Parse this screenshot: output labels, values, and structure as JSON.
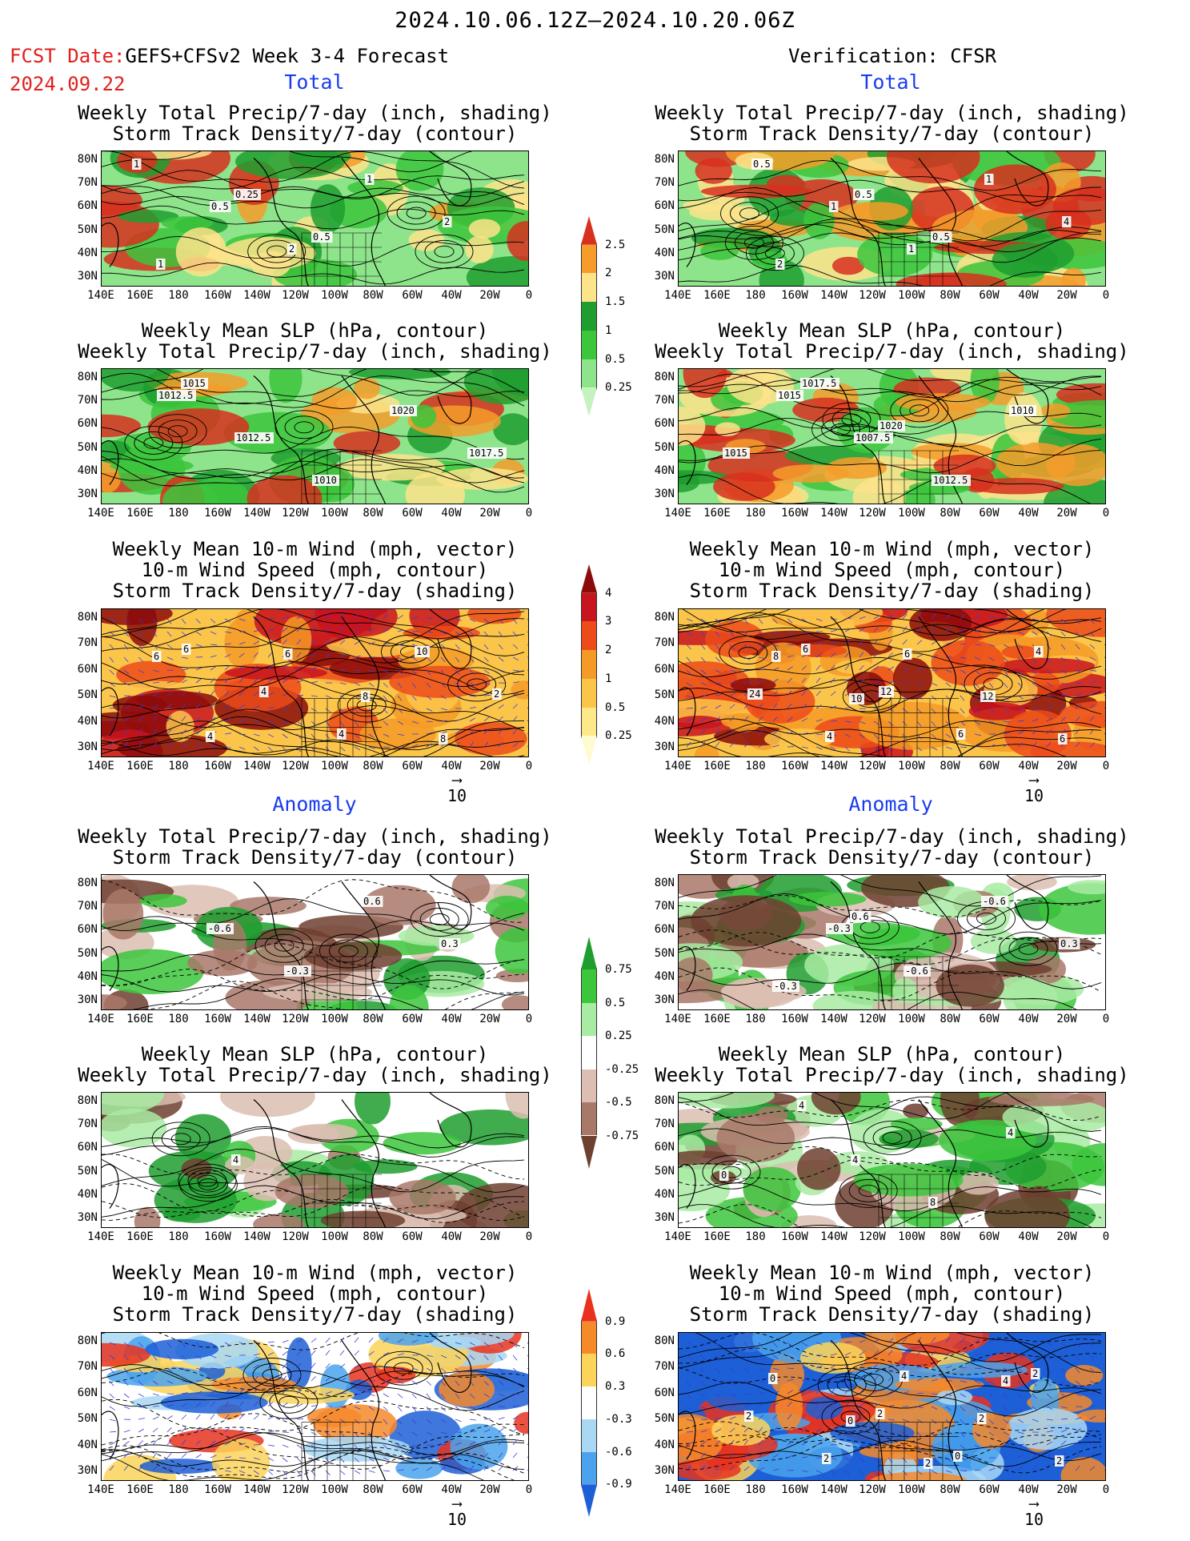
{
  "header": {
    "title": "2024.10.06.12Z–2024.10.20.06Z",
    "fcst_label": "FCST Date:",
    "model_label": "GEFS+CFSv2 Week 3-4 Forecast",
    "fcst_date": "2024.09.22",
    "verification": "Verification: CFSR"
  },
  "sections": {
    "total": "Total",
    "anomaly": "Anomaly"
  },
  "panel_titles": {
    "precip_storm": [
      "Weekly Total Precip/7-day (inch, shading)",
      "Storm Track Density/7-day (contour)"
    ],
    "slp_precip": [
      "Weekly Mean SLP (hPa, contour)",
      "Weekly Total Precip/7-day (inch, shading)"
    ],
    "wind_storm": [
      "Weekly Mean 10-m Wind (mph, vector)",
      "10-m Wind Speed (mph, contour)",
      "Storm Track Density/7-day (shading)"
    ]
  },
  "axes": {
    "lat": [
      "80N",
      "70N",
      "60N",
      "50N",
      "40N",
      "30N"
    ],
    "lon": [
      "140E",
      "160E",
      "180",
      "160W",
      "140W",
      "120W",
      "100W",
      "80W",
      "60W",
      "40W",
      "20W",
      "0"
    ]
  },
  "vector_ref": "10",
  "colorbars": {
    "precip_total": {
      "labels": [
        "2.5",
        "2",
        "1.5",
        "1",
        "0.5",
        "0.25"
      ],
      "colors": [
        "#d7301f",
        "#f59c2a",
        "#fde38a",
        "#1f9e2f",
        "#3cc63c",
        "#8ee48a",
        "#c6f2c0"
      ]
    },
    "storm_total": {
      "labels": [
        "4",
        "3",
        "2",
        "1",
        "0.5",
        "0.25"
      ],
      "colors": [
        "#8b0a0a",
        "#c8141e",
        "#ec4b1a",
        "#f59a26",
        "#fbc54a",
        "#fde88a",
        "#fffbd0"
      ]
    },
    "precip_anom": {
      "labels": [
        "0.75",
        "0.5",
        "0.25",
        "-0.25",
        "-0.5",
        "-0.75"
      ],
      "colors": [
        "#1f9e2f",
        "#3cc63c",
        "#a8eba2",
        "#ffffff",
        "#dcbeb2",
        "#a87868",
        "#6e4030"
      ]
    },
    "storm_anom": {
      "labels": [
        "0.9",
        "0.6",
        "0.3",
        "-0.3",
        "-0.6",
        "-0.9"
      ],
      "colors": [
        "#e8321e",
        "#f68a2a",
        "#fcd45a",
        "#ffffff",
        "#a8d8f4",
        "#4aa3ec",
        "#1d5fd6"
      ]
    }
  },
  "contour_labels": {
    "fc_total_precip": [
      "1",
      "0.5",
      "2",
      "1",
      "2",
      "1",
      "0.25",
      "0.5"
    ],
    "ver_total_precip": [
      "0.5",
      "1",
      "1",
      "1",
      "4",
      "2",
      "0.5",
      "0.5"
    ],
    "fc_total_slp": [
      "1012.5",
      "1012.5",
      "1010",
      "1020",
      "1017.5",
      "1015"
    ],
    "ver_total_slp": [
      "1015",
      "1007.5",
      "1012.5",
      "1010",
      "1015",
      "1017.5",
      "1020"
    ],
    "fc_total_wind": [
      "6",
      "4",
      "4",
      "10",
      "2",
      "4",
      "6",
      "8",
      "8",
      "6"
    ],
    "ver_total_wind": [
      "6",
      "12",
      "6",
      "4",
      "24",
      "4",
      "6",
      "12",
      "6",
      "8",
      "10"
    ],
    "fc_anom_precip": [
      "-0.6",
      "-0.3",
      "0.6",
      "0.3"
    ],
    "ver_anom_precip": [
      "-0.3",
      "-0.6",
      "-0.6",
      "0.3",
      "-0.3",
      "0.6"
    ],
    "fc_anom_slp": [
      "4"
    ],
    "ver_anom_slp": [
      "4",
      "8",
      "4",
      "0",
      "4"
    ],
    "fc_anom_wind": [],
    "ver_anom_wind": [
      "2",
      "0",
      "2",
      "2",
      "2",
      "4",
      "2",
      "2",
      "0",
      "0",
      "2",
      "4"
    ]
  }
}
